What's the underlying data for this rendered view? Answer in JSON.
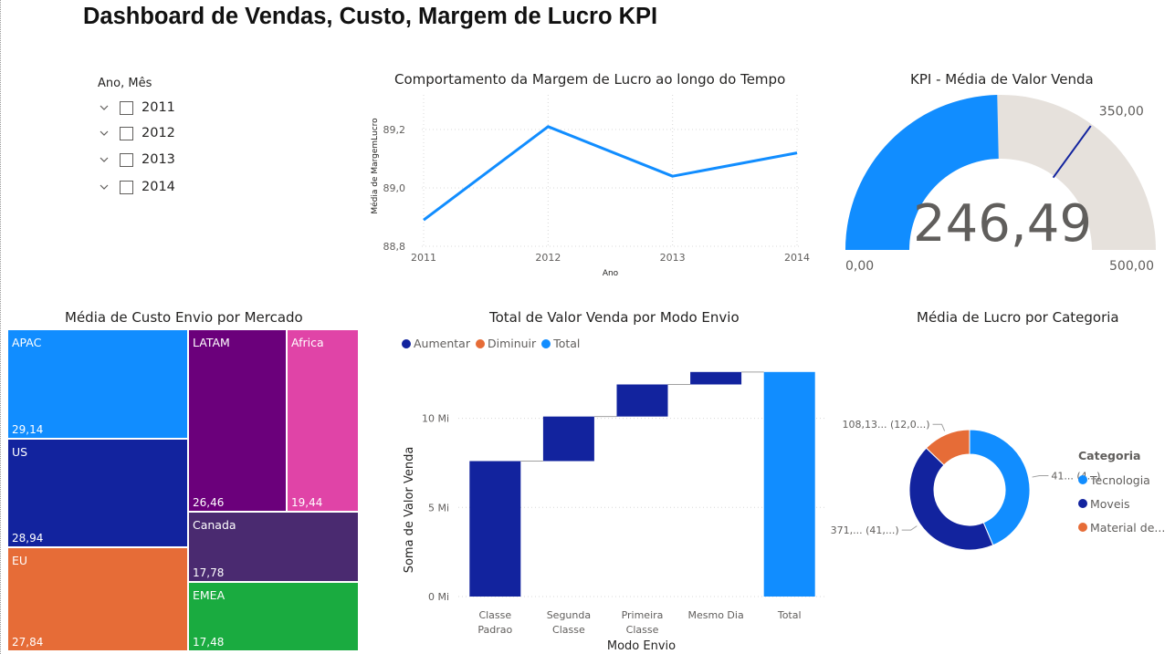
{
  "page": {
    "title": "Dashboard de Vendas, Custo, Margem de Lucro KPI"
  },
  "slicer": {
    "header": "Ano, Mês",
    "items": [
      {
        "label": "2011",
        "checked": false
      },
      {
        "label": "2012",
        "checked": false
      },
      {
        "label": "2013",
        "checked": false
      },
      {
        "label": "2014",
        "checked": false
      }
    ]
  },
  "titles": {
    "line": "Comportamento da Margem de Lucro ao longo do Tempo",
    "kpi": "KPI - Média de Valor Venda",
    "treemap": "Média de Custo Envio por Mercado",
    "waterfall": "Total de Valor Venda por Modo Envio",
    "donut": "Média de Lucro por Categoria"
  },
  "colors": {
    "accent_blue": "#118DFF",
    "dark_blue": "#12239E",
    "orange": "#E66C37",
    "purple": "#6B007B",
    "pink": "#E044A7",
    "violet": "#4A2A70",
    "green": "#1AAB40",
    "gauge_track": "#E6E1DC"
  },
  "chart_data": [
    {
      "id": "line",
      "type": "line",
      "x": [
        "2011",
        "2012",
        "2013",
        "2014"
      ],
      "values": [
        88.89,
        89.21,
        89.04,
        89.12
      ],
      "ylim": [
        88.8,
        89.3
      ],
      "yticks": [
        "88,8",
        "89,0",
        "89,2"
      ],
      "xlabel": "Ano",
      "ylabel": "Média de MargemLucro",
      "grid": true
    },
    {
      "id": "gauge",
      "type": "gauge",
      "value": 246.49,
      "value_label": "246,49",
      "min_label": "0,00",
      "max_label": "500,00",
      "target": 350,
      "target_label": "350,00",
      "min": 0,
      "max": 500
    },
    {
      "id": "treemap",
      "type": "treemap",
      "items": [
        {
          "name": "APAC",
          "value_label": "29,14",
          "value": 29.14
        },
        {
          "name": "US",
          "value_label": "28,94",
          "value": 28.94
        },
        {
          "name": "EU",
          "value_label": "27,84",
          "value": 27.84
        },
        {
          "name": "LATAM",
          "value_label": "26,46",
          "value": 26.46
        },
        {
          "name": "Africa",
          "value_label": "19,44",
          "value": 19.44
        },
        {
          "name": "Canada",
          "value_label": "17,78",
          "value": 17.78
        },
        {
          "name": "EMEA",
          "value_label": "17,48",
          "value": 17.48
        }
      ]
    },
    {
      "id": "waterfall",
      "type": "bar",
      "legend": [
        "Aumentar",
        "Diminuir",
        "Total"
      ],
      "categories": [
        [
          "Classe",
          "Padrao"
        ],
        [
          "Segunda",
          "Classe"
        ],
        [
          "Primeira",
          "Classe"
        ],
        [
          "Mesmo Dia"
        ],
        [
          "Total"
        ]
      ],
      "increments": [
        7.6,
        2.5,
        1.8,
        0.7
      ],
      "total": 12.6,
      "ylim": [
        0,
        13
      ],
      "yticks": [
        "0 Mi",
        "5 Mi",
        "10 Mi"
      ],
      "xlabel": "Modo Envio",
      "ylabel": "Soma de Valor Venda"
    },
    {
      "id": "donut",
      "type": "pie",
      "legend_title": "Categoria",
      "slices": [
        {
          "name": "Tecnologia",
          "value": 41,
          "label": "41... (4...)"
        },
        {
          "name": "Moveis",
          "value": 41,
          "label": "371,... (41,...)"
        },
        {
          "name": "Material de...",
          "value": 12,
          "label": "108,13... (12,0...)"
        }
      ]
    }
  ]
}
